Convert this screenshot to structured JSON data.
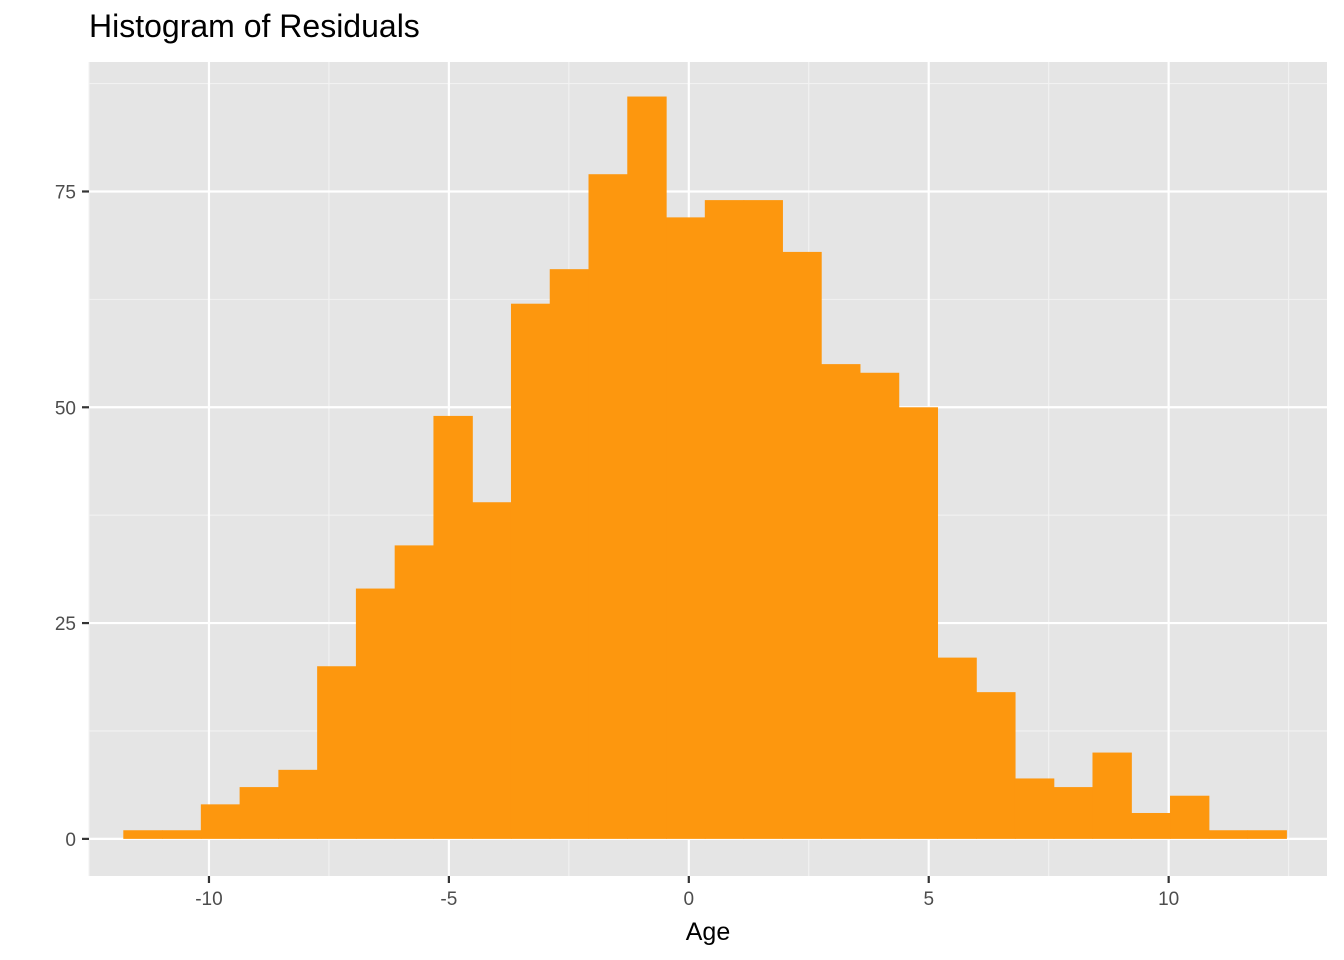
{
  "chart_data": {
    "type": "bar",
    "title": "Histogram of Residuals",
    "xlabel": "Age",
    "ylabel": "",
    "xlim": [
      -12.5,
      13.3
    ],
    "ylim": [
      -4.3,
      90.0
    ],
    "bin_width": 0.8079,
    "bin_start": -11.785,
    "counts": [
      1,
      1,
      4,
      6,
      8,
      20,
      29,
      34,
      49,
      39,
      62,
      66,
      77,
      86,
      72,
      74,
      74,
      68,
      55,
      54,
      50,
      21,
      17,
      7,
      6,
      10,
      3,
      5,
      1,
      1
    ],
    "x_ticks": [
      -10,
      -5,
      0,
      5,
      10
    ],
    "x_tick_labels": [
      "-10",
      "-5",
      "0",
      "5",
      "10"
    ],
    "y_ticks": [
      0,
      25,
      50,
      75
    ],
    "y_tick_labels": [
      "0",
      "25",
      "50",
      "75"
    ],
    "x_minor_ticks": [
      -12.5,
      -7.5,
      -2.5,
      2.5,
      7.5,
      12.5
    ],
    "y_minor_ticks": [
      12.5,
      37.5,
      62.5,
      87.5
    ],
    "grid": true,
    "colors": {
      "bar": "#fd970e",
      "panel_background": "#e5e5e5",
      "grid_major": "#ffffff",
      "grid_minor": "#f2f2f2",
      "tick_text": "#4d4d4d"
    }
  }
}
